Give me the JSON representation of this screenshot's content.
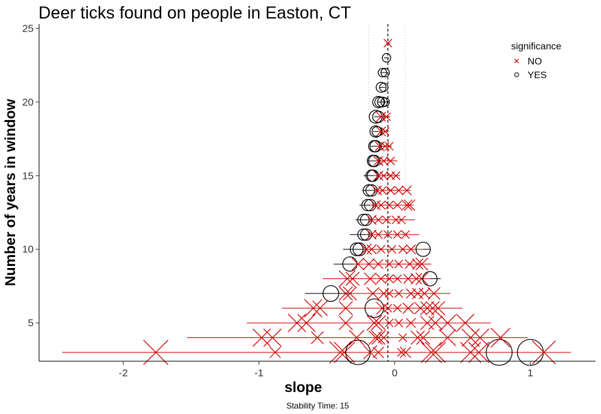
{
  "chart_data": {
    "type": "scatter",
    "title": "Deer ticks found on people in Easton, CT",
    "xlabel": "slope",
    "ylabel": "Number of years in window",
    "caption": "Stability Time: 15",
    "xlim": [
      -2.62,
      1.48
    ],
    "ylim": [
      2.4,
      25.3
    ],
    "xticks": [
      -2,
      -1,
      0,
      1
    ],
    "yticks": [
      5,
      10,
      15,
      20,
      25
    ],
    "grid": false,
    "reference_lines": {
      "mean_slope": -0.05,
      "lower": -0.19,
      "upper": 0.08
    },
    "legend": {
      "title": "significance",
      "placement": "top-right",
      "entries": [
        {
          "label": "NO",
          "shape": "cross",
          "color": "#cc0000"
        },
        {
          "label": "YES",
          "shape": "circle",
          "color": "#000000"
        }
      ]
    },
    "ranges": [
      {
        "y": 3,
        "min": -2.45,
        "max": 1.3,
        "sig": "NO"
      },
      {
        "y": 4,
        "min": -1.53,
        "max": 0.98,
        "sig": "NO"
      },
      {
        "y": 5,
        "min": -1.09,
        "max": 0.71,
        "sig": "NO"
      },
      {
        "y": 6,
        "min": -0.83,
        "max": 0.5,
        "sig": "NO"
      },
      {
        "y": 7,
        "min": -0.66,
        "max": -0.31,
        "sig": "YES"
      },
      {
        "y": 7,
        "min": -0.31,
        "max": 0.41,
        "sig": "NO"
      },
      {
        "y": 8,
        "min": -0.53,
        "max": 0.26,
        "sig": "NO"
      },
      {
        "y": 8,
        "min": 0.26,
        "max": 0.34,
        "sig": "YES"
      },
      {
        "y": 9,
        "min": -0.45,
        "max": -0.3,
        "sig": "YES"
      },
      {
        "y": 9,
        "min": -0.3,
        "max": 0.27,
        "sig": "NO"
      },
      {
        "y": 10,
        "min": -0.38,
        "max": -0.22,
        "sig": "YES"
      },
      {
        "y": 10,
        "min": -0.22,
        "max": 0.21,
        "sig": "NO"
      },
      {
        "y": 10,
        "min": 0.21,
        "max": 0.26,
        "sig": "YES"
      },
      {
        "y": 11,
        "min": -0.33,
        "max": -0.19,
        "sig": "YES"
      },
      {
        "y": 11,
        "min": -0.19,
        "max": 0.18,
        "sig": "NO"
      },
      {
        "y": 12,
        "min": -0.29,
        "max": -0.2,
        "sig": "YES"
      },
      {
        "y": 12,
        "min": -0.2,
        "max": 0.15,
        "sig": "NO"
      },
      {
        "y": 13,
        "min": -0.26,
        "max": -0.18,
        "sig": "YES"
      },
      {
        "y": 13,
        "min": -0.18,
        "max": 0.14,
        "sig": "NO"
      },
      {
        "y": 14,
        "min": -0.24,
        "max": -0.16,
        "sig": "YES"
      },
      {
        "y": 14,
        "min": -0.16,
        "max": 0.12,
        "sig": "NO"
      },
      {
        "y": 15,
        "min": -0.23,
        "max": -0.15,
        "sig": "YES"
      },
      {
        "y": 15,
        "min": -0.15,
        "max": 0.04,
        "sig": "NO"
      },
      {
        "y": 16,
        "min": -0.2,
        "max": -0.14,
        "sig": "YES"
      },
      {
        "y": 16,
        "min": -0.14,
        "max": 0.02,
        "sig": "NO"
      },
      {
        "y": 17,
        "min": -0.18,
        "max": -0.13,
        "sig": "YES"
      },
      {
        "y": 17,
        "min": -0.13,
        "max": -0.02,
        "sig": "NO"
      },
      {
        "y": 18,
        "min": -0.16,
        "max": -0.12,
        "sig": "YES"
      },
      {
        "y": 18,
        "min": -0.12,
        "max": -0.05,
        "sig": "NO"
      },
      {
        "y": 19,
        "min": -0.15,
        "max": -0.11,
        "sig": "YES"
      },
      {
        "y": 19,
        "min": -0.11,
        "max": -0.03,
        "sig": "NO"
      },
      {
        "y": 20,
        "min": -0.13,
        "max": -0.04,
        "sig": "YES"
      },
      {
        "y": 21,
        "min": -0.11,
        "max": -0.07,
        "sig": "YES"
      },
      {
        "y": 22,
        "min": -0.1,
        "max": -0.06,
        "sig": "YES"
      },
      {
        "y": 23,
        "min": -0.08,
        "max": -0.04,
        "sig": "YES"
      },
      {
        "y": 24,
        "min": -0.06,
        "max": -0.03,
        "sig": "NO"
      }
    ],
    "points": [
      {
        "x": -1.76,
        "y": 3,
        "size": 3.0,
        "sig": "NO"
      },
      {
        "x": -0.88,
        "y": 3,
        "size": 1.0,
        "sig": "NO"
      },
      {
        "x": -0.4,
        "y": 3,
        "size": 2.6,
        "sig": "NO"
      },
      {
        "x": -0.37,
        "y": 3,
        "size": 2.4,
        "sig": "NO"
      },
      {
        "x": -0.27,
        "y": 3,
        "size": 2.8,
        "sig": "YES"
      },
      {
        "x": -0.18,
        "y": 3,
        "size": 1.4,
        "sig": "NO"
      },
      {
        "x": -0.12,
        "y": 3,
        "size": 1.0,
        "sig": "NO"
      },
      {
        "x": 0.05,
        "y": 3,
        "size": 0.6,
        "sig": "NO"
      },
      {
        "x": 0.08,
        "y": 3,
        "size": 1.0,
        "sig": "NO"
      },
      {
        "x": 0.27,
        "y": 3,
        "size": 2.4,
        "sig": "NO"
      },
      {
        "x": 0.3,
        "y": 3,
        "size": 2.4,
        "sig": "NO"
      },
      {
        "x": 0.56,
        "y": 3,
        "size": 2.4,
        "sig": "NO"
      },
      {
        "x": 0.62,
        "y": 3,
        "size": 2.4,
        "sig": "NO"
      },
      {
        "x": 0.77,
        "y": 3,
        "size": 3.0,
        "sig": "YES"
      },
      {
        "x": 1.0,
        "y": 3,
        "size": 3.0,
        "sig": "YES"
      },
      {
        "x": 1.1,
        "y": 3,
        "size": 2.8,
        "sig": "NO"
      },
      {
        "x": -0.98,
        "y": 4,
        "size": 2.0,
        "sig": "NO"
      },
      {
        "x": -0.9,
        "y": 4,
        "size": 2.0,
        "sig": "NO"
      },
      {
        "x": -0.57,
        "y": 4,
        "size": 1.2,
        "sig": "NO"
      },
      {
        "x": -0.28,
        "y": 4,
        "size": 1.6,
        "sig": "NO"
      },
      {
        "x": -0.14,
        "y": 4,
        "size": 1.4,
        "sig": "NO"
      },
      {
        "x": -0.12,
        "y": 4,
        "size": 1.4,
        "sig": "NO"
      },
      {
        "x": -0.08,
        "y": 4,
        "size": 1.0,
        "sig": "NO"
      },
      {
        "x": 0.06,
        "y": 4,
        "size": 0.6,
        "sig": "NO"
      },
      {
        "x": 0.17,
        "y": 4,
        "size": 1.4,
        "sig": "NO"
      },
      {
        "x": 0.21,
        "y": 4,
        "size": 1.4,
        "sig": "NO"
      },
      {
        "x": 0.39,
        "y": 4,
        "size": 1.8,
        "sig": "NO"
      },
      {
        "x": 0.56,
        "y": 4,
        "size": 2.0,
        "sig": "NO"
      },
      {
        "x": 0.63,
        "y": 4,
        "size": 2.0,
        "sig": "NO"
      },
      {
        "x": 0.78,
        "y": 4,
        "size": 2.2,
        "sig": "NO"
      },
      {
        "x": -0.72,
        "y": 5,
        "size": 2.0,
        "sig": "NO"
      },
      {
        "x": -0.65,
        "y": 5,
        "size": 2.0,
        "sig": "NO"
      },
      {
        "x": -0.36,
        "y": 5,
        "size": 1.4,
        "sig": "NO"
      },
      {
        "x": -0.15,
        "y": 5,
        "size": 1.6,
        "sig": "NO"
      },
      {
        "x": -0.12,
        "y": 5,
        "size": 1.6,
        "sig": "NO"
      },
      {
        "x": -0.04,
        "y": 5,
        "size": 0.6,
        "sig": "NO"
      },
      {
        "x": 0.03,
        "y": 5,
        "size": 0.6,
        "sig": "NO"
      },
      {
        "x": 0.12,
        "y": 5,
        "size": 0.8,
        "sig": "NO"
      },
      {
        "x": 0.24,
        "y": 5,
        "size": 1.4,
        "sig": "NO"
      },
      {
        "x": 0.3,
        "y": 5,
        "size": 1.4,
        "sig": "NO"
      },
      {
        "x": 0.39,
        "y": 5,
        "size": 1.8,
        "sig": "NO"
      },
      {
        "x": 0.52,
        "y": 5,
        "size": 2.0,
        "sig": "NO"
      },
      {
        "x": -0.6,
        "y": 6,
        "size": 2.0,
        "sig": "NO"
      },
      {
        "x": -0.55,
        "y": 6,
        "size": 1.6,
        "sig": "NO"
      },
      {
        "x": -0.36,
        "y": 6,
        "size": 1.4,
        "sig": "NO"
      },
      {
        "x": -0.15,
        "y": 6,
        "size": 2.0,
        "sig": "YES"
      },
      {
        "x": -0.09,
        "y": 6,
        "size": 1.2,
        "sig": "NO"
      },
      {
        "x": -0.05,
        "y": 6,
        "size": 0.6,
        "sig": "NO"
      },
      {
        "x": 0.02,
        "y": 6,
        "size": 0.6,
        "sig": "NO"
      },
      {
        "x": 0.1,
        "y": 6,
        "size": 1.0,
        "sig": "NO"
      },
      {
        "x": 0.19,
        "y": 6,
        "size": 1.2,
        "sig": "NO"
      },
      {
        "x": 0.24,
        "y": 6,
        "size": 1.4,
        "sig": "NO"
      },
      {
        "x": 0.28,
        "y": 6,
        "size": 1.4,
        "sig": "NO"
      },
      {
        "x": 0.32,
        "y": 6,
        "size": 1.4,
        "sig": "NO"
      },
      {
        "x": -0.47,
        "y": 7,
        "size": 1.6,
        "sig": "YES"
      },
      {
        "x": -0.36,
        "y": 7,
        "size": 1.4,
        "sig": "NO"
      },
      {
        "x": -0.33,
        "y": 7,
        "size": 1.4,
        "sig": "NO"
      },
      {
        "x": -0.16,
        "y": 7,
        "size": 1.2,
        "sig": "NO"
      },
      {
        "x": -0.08,
        "y": 7,
        "size": 0.8,
        "sig": "NO"
      },
      {
        "x": -0.04,
        "y": 7,
        "size": 0.6,
        "sig": "NO"
      },
      {
        "x": 0.03,
        "y": 7,
        "size": 0.6,
        "sig": "NO"
      },
      {
        "x": 0.12,
        "y": 7,
        "size": 0.8,
        "sig": "NO"
      },
      {
        "x": 0.17,
        "y": 7,
        "size": 1.0,
        "sig": "NO"
      },
      {
        "x": 0.22,
        "y": 7,
        "size": 1.0,
        "sig": "NO"
      },
      {
        "x": 0.29,
        "y": 7,
        "size": 1.2,
        "sig": "NO"
      },
      {
        "x": -0.35,
        "y": 8,
        "size": 1.8,
        "sig": "NO"
      },
      {
        "x": -0.31,
        "y": 8,
        "size": 1.4,
        "sig": "NO"
      },
      {
        "x": -0.18,
        "y": 8,
        "size": 1.2,
        "sig": "NO"
      },
      {
        "x": -0.1,
        "y": 8,
        "size": 0.8,
        "sig": "NO"
      },
      {
        "x": -0.04,
        "y": 8,
        "size": 0.6,
        "sig": "NO"
      },
      {
        "x": 0.02,
        "y": 8,
        "size": 0.6,
        "sig": "NO"
      },
      {
        "x": 0.1,
        "y": 8,
        "size": 0.8,
        "sig": "NO"
      },
      {
        "x": 0.16,
        "y": 8,
        "size": 1.0,
        "sig": "NO"
      },
      {
        "x": 0.2,
        "y": 8,
        "size": 1.2,
        "sig": "NO"
      },
      {
        "x": 0.26,
        "y": 8,
        "size": 1.4,
        "sig": "YES"
      },
      {
        "x": -0.33,
        "y": 9,
        "size": 1.4,
        "sig": "YES"
      },
      {
        "x": -0.27,
        "y": 9,
        "size": 1.2,
        "sig": "NO"
      },
      {
        "x": -0.19,
        "y": 9,
        "size": 1.0,
        "sig": "NO"
      },
      {
        "x": -0.12,
        "y": 9,
        "size": 0.8,
        "sig": "NO"
      },
      {
        "x": -0.04,
        "y": 9,
        "size": 0.6,
        "sig": "NO"
      },
      {
        "x": 0.03,
        "y": 9,
        "size": 0.6,
        "sig": "NO"
      },
      {
        "x": 0.11,
        "y": 9,
        "size": 0.8,
        "sig": "NO"
      },
      {
        "x": 0.17,
        "y": 9,
        "size": 1.0,
        "sig": "NO"
      },
      {
        "x": 0.2,
        "y": 9,
        "size": 1.2,
        "sig": "NO"
      },
      {
        "x": -0.28,
        "y": 10,
        "size": 1.2,
        "sig": "YES"
      },
      {
        "x": -0.26,
        "y": 10,
        "size": 1.2,
        "sig": "YES"
      },
      {
        "x": -0.21,
        "y": 10,
        "size": 1.0,
        "sig": "NO"
      },
      {
        "x": -0.17,
        "y": 10,
        "size": 0.8,
        "sig": "NO"
      },
      {
        "x": -0.1,
        "y": 10,
        "size": 0.6,
        "sig": "NO"
      },
      {
        "x": -0.02,
        "y": 10,
        "size": 0.6,
        "sig": "NO"
      },
      {
        "x": 0.06,
        "y": 10,
        "size": 0.6,
        "sig": "NO"
      },
      {
        "x": 0.12,
        "y": 10,
        "size": 0.8,
        "sig": "NO"
      },
      {
        "x": 0.21,
        "y": 10,
        "size": 1.4,
        "sig": "YES"
      },
      {
        "x": -0.23,
        "y": 11,
        "size": 1.0,
        "sig": "YES"
      },
      {
        "x": -0.21,
        "y": 11,
        "size": 1.0,
        "sig": "YES"
      },
      {
        "x": -0.17,
        "y": 11,
        "size": 0.8,
        "sig": "NO"
      },
      {
        "x": -0.12,
        "y": 11,
        "size": 0.6,
        "sig": "NO"
      },
      {
        "x": -0.05,
        "y": 11,
        "size": 0.6,
        "sig": "NO"
      },
      {
        "x": 0.02,
        "y": 11,
        "size": 0.6,
        "sig": "NO"
      },
      {
        "x": 0.08,
        "y": 11,
        "size": 0.6,
        "sig": "NO"
      },
      {
        "x": -0.23,
        "y": 12,
        "size": 1.0,
        "sig": "YES"
      },
      {
        "x": -0.21,
        "y": 12,
        "size": 1.0,
        "sig": "YES"
      },
      {
        "x": -0.17,
        "y": 12,
        "size": 0.8,
        "sig": "NO"
      },
      {
        "x": -0.12,
        "y": 12,
        "size": 0.6,
        "sig": "NO"
      },
      {
        "x": -0.06,
        "y": 12,
        "size": 0.6,
        "sig": "NO"
      },
      {
        "x": 0.01,
        "y": 12,
        "size": 0.6,
        "sig": "NO"
      },
      {
        "x": 0.05,
        "y": 12,
        "size": 0.6,
        "sig": "NO"
      },
      {
        "x": -0.2,
        "y": 13,
        "size": 1.0,
        "sig": "YES"
      },
      {
        "x": -0.18,
        "y": 13,
        "size": 1.0,
        "sig": "YES"
      },
      {
        "x": -0.14,
        "y": 13,
        "size": 0.8,
        "sig": "NO"
      },
      {
        "x": -0.1,
        "y": 13,
        "size": 0.6,
        "sig": "NO"
      },
      {
        "x": -0.04,
        "y": 13,
        "size": 0.6,
        "sig": "NO"
      },
      {
        "x": 0.02,
        "y": 13,
        "size": 0.6,
        "sig": "NO"
      },
      {
        "x": 0.09,
        "y": 13,
        "size": 1.0,
        "sig": "NO"
      },
      {
        "x": 0.11,
        "y": 13,
        "size": 1.0,
        "sig": "NO"
      },
      {
        "x": -0.19,
        "y": 14,
        "size": 1.0,
        "sig": "YES"
      },
      {
        "x": -0.17,
        "y": 14,
        "size": 1.0,
        "sig": "YES"
      },
      {
        "x": -0.13,
        "y": 14,
        "size": 0.8,
        "sig": "NO"
      },
      {
        "x": -0.09,
        "y": 14,
        "size": 0.6,
        "sig": "NO"
      },
      {
        "x": -0.03,
        "y": 14,
        "size": 0.6,
        "sig": "NO"
      },
      {
        "x": 0.03,
        "y": 14,
        "size": 0.6,
        "sig": "NO"
      },
      {
        "x": 0.09,
        "y": 14,
        "size": 0.8,
        "sig": "NO"
      },
      {
        "x": -0.17,
        "y": 15,
        "size": 1.0,
        "sig": "YES"
      },
      {
        "x": -0.16,
        "y": 15,
        "size": 1.0,
        "sig": "YES"
      },
      {
        "x": -0.12,
        "y": 15,
        "size": 0.8,
        "sig": "NO"
      },
      {
        "x": -0.08,
        "y": 15,
        "size": 0.6,
        "sig": "NO"
      },
      {
        "x": -0.03,
        "y": 15,
        "size": 0.6,
        "sig": "NO"
      },
      {
        "x": 0.01,
        "y": 15,
        "size": 0.6,
        "sig": "NO"
      },
      {
        "x": -0.16,
        "y": 16,
        "size": 1.0,
        "sig": "YES"
      },
      {
        "x": -0.15,
        "y": 16,
        "size": 1.0,
        "sig": "YES"
      },
      {
        "x": -0.12,
        "y": 16,
        "size": 0.8,
        "sig": "NO"
      },
      {
        "x": -0.08,
        "y": 16,
        "size": 0.6,
        "sig": "NO"
      },
      {
        "x": -0.03,
        "y": 16,
        "size": 0.6,
        "sig": "NO"
      },
      {
        "x": -0.15,
        "y": 17,
        "size": 1.0,
        "sig": "YES"
      },
      {
        "x": -0.14,
        "y": 17,
        "size": 1.0,
        "sig": "YES"
      },
      {
        "x": -0.11,
        "y": 17,
        "size": 0.8,
        "sig": "NO"
      },
      {
        "x": -0.07,
        "y": 17,
        "size": 0.6,
        "sig": "NO"
      },
      {
        "x": -0.04,
        "y": 17,
        "size": 0.6,
        "sig": "NO"
      },
      {
        "x": -0.14,
        "y": 18,
        "size": 1.0,
        "sig": "YES"
      },
      {
        "x": -0.13,
        "y": 18,
        "size": 0.8,
        "sig": "YES"
      },
      {
        "x": -0.1,
        "y": 18,
        "size": 0.8,
        "sig": "NO"
      },
      {
        "x": -0.07,
        "y": 18,
        "size": 0.6,
        "sig": "NO"
      },
      {
        "x": -0.14,
        "y": 19,
        "size": 1.2,
        "sig": "YES"
      },
      {
        "x": -0.12,
        "y": 19,
        "size": 1.0,
        "sig": "YES"
      },
      {
        "x": -0.1,
        "y": 19,
        "size": 0.8,
        "sig": "NO"
      },
      {
        "x": -0.06,
        "y": 19,
        "size": 0.6,
        "sig": "NO"
      },
      {
        "x": -0.12,
        "y": 20,
        "size": 1.0,
        "sig": "YES"
      },
      {
        "x": -0.11,
        "y": 20,
        "size": 0.8,
        "sig": "YES"
      },
      {
        "x": -0.09,
        "y": 20,
        "size": 0.8,
        "sig": "YES"
      },
      {
        "x": -0.07,
        "y": 20,
        "size": 0.6,
        "sig": "YES"
      },
      {
        "x": -0.1,
        "y": 21,
        "size": 0.8,
        "sig": "YES"
      },
      {
        "x": -0.08,
        "y": 21,
        "size": 0.6,
        "sig": "YES"
      },
      {
        "x": -0.09,
        "y": 22,
        "size": 0.6,
        "sig": "YES"
      },
      {
        "x": -0.07,
        "y": 22,
        "size": 0.6,
        "sig": "YES"
      },
      {
        "x": -0.06,
        "y": 23,
        "size": 0.6,
        "sig": "YES"
      },
      {
        "x": -0.05,
        "y": 24,
        "size": 0.6,
        "sig": "NO"
      }
    ]
  }
}
